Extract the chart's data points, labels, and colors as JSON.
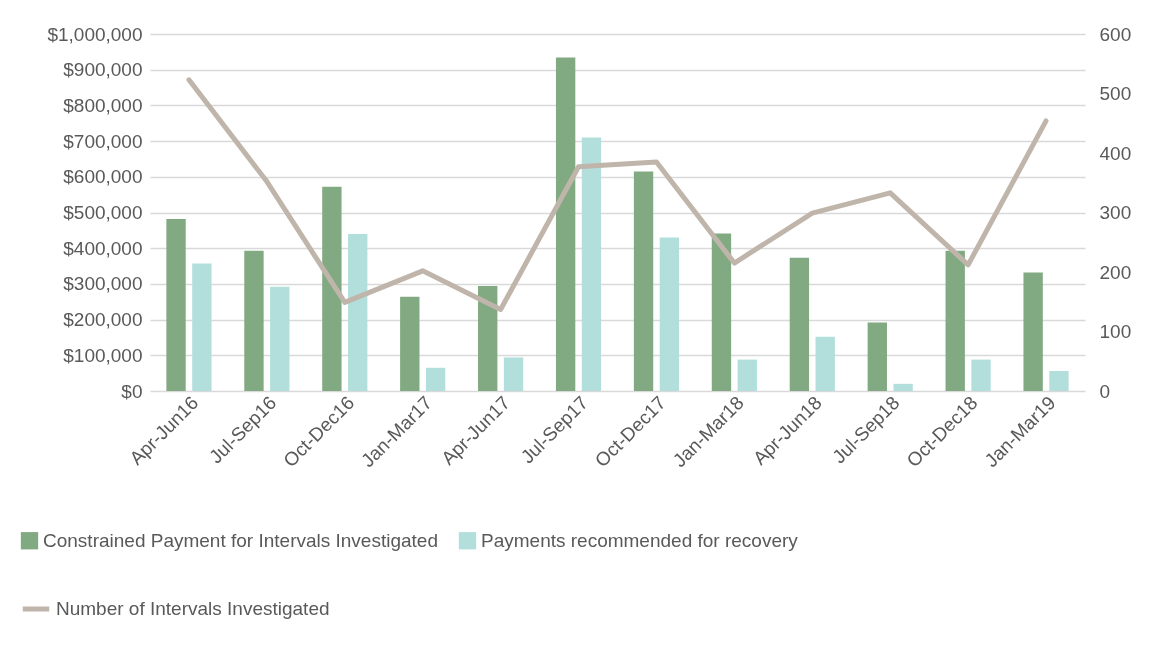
{
  "chart_data": {
    "type": "bar",
    "categories": [
      "Apr-Jun16",
      "Jul-Sep16",
      "Oct-Dec16",
      "Jan-Mar17",
      "Apr-Jun17",
      "Jul-Sep17",
      "Oct-Dec17",
      "Jan-Mar18",
      "Apr-Jun18",
      "Jul-Sep18",
      "Oct-Dec18",
      "Jan-Mar19"
    ],
    "series": [
      {
        "name": "Constrained Payment for Intervals Investigated",
        "color": "#82aa82",
        "values": [
          482000,
          393000,
          572000,
          264000,
          294000,
          934000,
          615000,
          441000,
          373000,
          192000,
          393000,
          332000
        ]
      },
      {
        "name": "Payments recommended for recovery",
        "color": "#b2dfdc",
        "values": [
          357000,
          292000,
          440000,
          65000,
          94000,
          710000,
          430000,
          88000,
          152000,
          20000,
          88000,
          56000
        ]
      },
      {
        "name": "Number of Intervals Investigated",
        "color": "#bfb5aa",
        "type": "line",
        "axis": "y2",
        "values": [
          523,
          352,
          149,
          202,
          137,
          377,
          385,
          215,
          299,
          333,
          212,
          454
        ]
      }
    ],
    "ylim": [
      0,
      1000000
    ],
    "yticks": [
      {
        "value": 0,
        "label": "$0"
      },
      {
        "value": 100000,
        "label": "$100,000"
      },
      {
        "value": 200000,
        "label": "$200,000"
      },
      {
        "value": 300000,
        "label": "$300,000"
      },
      {
        "value": 400000,
        "label": "$400,000"
      },
      {
        "value": 500000,
        "label": "$500,000"
      },
      {
        "value": 600000,
        "label": "$600,000"
      },
      {
        "value": 700000,
        "label": "$700,000"
      },
      {
        "value": 800000,
        "label": "$800,000"
      },
      {
        "value": 900000,
        "label": "$900,000"
      },
      {
        "value": 1000000,
        "label": "$1,000,000"
      }
    ],
    "y2lim": [
      0,
      600
    ],
    "y2ticks": [
      0,
      100,
      200,
      300,
      400,
      500,
      600
    ],
    "grid": "y",
    "legend": "bottom",
    "marker": "none",
    "line_style": "solid"
  }
}
